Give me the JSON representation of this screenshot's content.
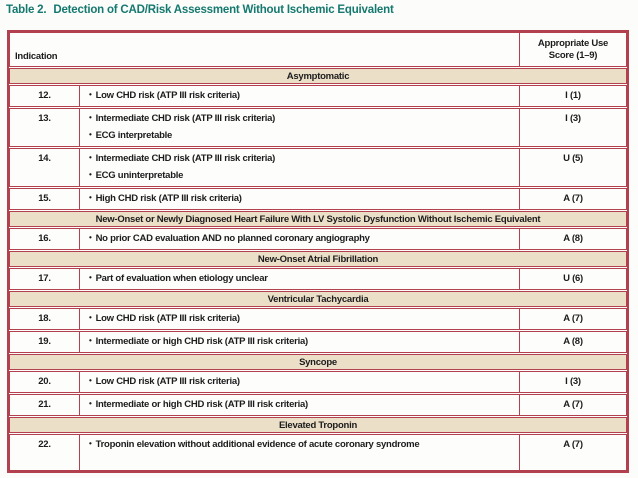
{
  "title": {
    "label": "Table 2.",
    "caption": "Detection of CAD/Risk Assessment Without Ischemic Equivalent"
  },
  "table": {
    "bullet": "•",
    "header": {
      "indication": "Indication",
      "score_line1": "Appropriate Use",
      "score_line2": "Score (1–9)"
    },
    "sections": [
      {
        "title": "Asymptomatic",
        "rows": [
          {
            "num": "12.",
            "criteria": [
              "Low CHD risk (ATP III risk criteria)"
            ],
            "score": "I (1)"
          },
          {
            "num": "13.",
            "criteria": [
              "Intermediate CHD risk (ATP III risk criteria)",
              "ECG interpretable"
            ],
            "score": "I (3)"
          },
          {
            "num": "14.",
            "criteria": [
              "Intermediate CHD risk (ATP III risk criteria)",
              "ECG uninterpretable"
            ],
            "score": "U (5)"
          },
          {
            "num": "15.",
            "criteria": [
              "High CHD risk (ATP III risk criteria)"
            ],
            "score": "A (7)"
          }
        ]
      },
      {
        "title": "New-Onset or Newly Diagnosed Heart Failure With LV Systolic Dysfunction Without Ischemic Equivalent",
        "rows": [
          {
            "num": "16.",
            "criteria": [
              "No prior CAD evaluation AND no planned coronary angiography"
            ],
            "score": "A (8)"
          }
        ]
      },
      {
        "title": "New-Onset Atrial Fibrillation",
        "rows": [
          {
            "num": "17.",
            "criteria": [
              "Part of evaluation when etiology unclear"
            ],
            "score": "U (6)"
          }
        ]
      },
      {
        "title": "Ventricular Tachycardia",
        "rows": [
          {
            "num": "18.",
            "criteria": [
              "Low CHD risk (ATP III risk criteria)"
            ],
            "score": "A (7)"
          },
          {
            "num": "19.",
            "criteria": [
              "Intermediate or high CHD risk (ATP III risk criteria)"
            ],
            "score": "A (8)"
          }
        ]
      },
      {
        "title": "Syncope",
        "rows": [
          {
            "num": "20.",
            "criteria": [
              "Low CHD risk (ATP III risk criteria)"
            ],
            "score": "I (3)"
          },
          {
            "num": "21.",
            "criteria": [
              "Intermediate or high CHD risk (ATP III risk criteria)"
            ],
            "score": "A (7)"
          }
        ]
      },
      {
        "title": "Elevated Troponin",
        "rows": [
          {
            "num": "22.",
            "criteria": [
              "Troponin elevation without additional evidence of acute coronary syndrome"
            ],
            "score": "A (7)",
            "tall": true
          }
        ]
      }
    ]
  },
  "colors": {
    "title_teal": "#15796f",
    "border_crimson": "#b2404f",
    "band_beige": "#ecdfc8",
    "text": "#1c1c1c"
  }
}
